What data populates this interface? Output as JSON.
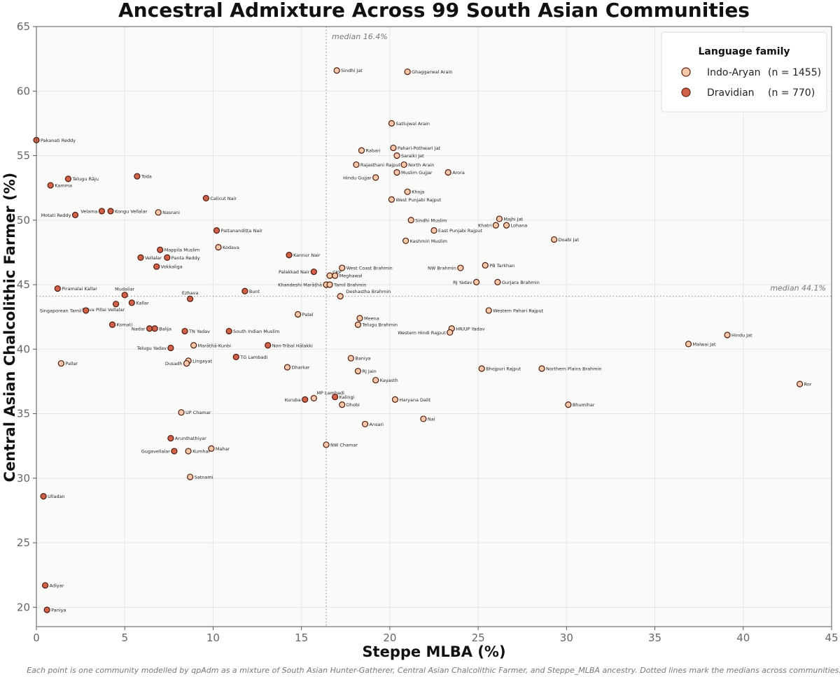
{
  "chart_data": {
    "type": "scatter",
    "title": "Ancestral Admixture Across 99 South Asian Communities",
    "xlabel": "Steppe MLBA  (%)",
    "ylabel": "Central Asian Chalcolithic Farmer  (%)",
    "xlim": [
      0,
      45
    ],
    "ylim": [
      18.5,
      65
    ],
    "xticks": [
      0,
      5,
      10,
      15,
      20,
      25,
      30,
      35,
      40,
      45
    ],
    "yticks": [
      20,
      25,
      30,
      35,
      40,
      45,
      50,
      55,
      60,
      65
    ],
    "grid": true,
    "medians": {
      "x": 16.4,
      "x_label": "median  16.4%",
      "y": 44.1,
      "y_label": "median  44.1%"
    },
    "caption": "Each point is one community modelled by qpAdm as a mixture of South Asian Hunter-Gatherer, Central Asian Chalcolithic Farmer, and Steppe_MLBA ancestry.  Dotted lines mark the medians across communities.",
    "legend": {
      "title": "Language family",
      "position": "top-right",
      "entries": [
        {
          "label": "Indo-Aryan",
          "count": "(n = 1455)",
          "color": "#f9c8a8"
        },
        {
          "label": "Dravidian",
          "count": "(n = 770)",
          "color": "#d2614a"
        }
      ]
    },
    "series": [
      {
        "name": "Indo-Aryan",
        "color": "#f9c8a8",
        "points": [
          {
            "label": "Sindhi Jat",
            "x": 17.0,
            "y": 61.6
          },
          {
            "label": "Ghaggarwal Arain",
            "x": 21.0,
            "y": 61.5
          },
          {
            "label": "Satlujwal Arain",
            "x": 20.1,
            "y": 57.5
          },
          {
            "label": "Pahari-Pothwari Jat",
            "x": 20.2,
            "y": 55.6
          },
          {
            "label": "Rabari",
            "x": 18.4,
            "y": 55.4
          },
          {
            "label": "Saraiki Jat",
            "x": 20.4,
            "y": 55.0
          },
          {
            "label": "Rajasthani Rajput",
            "x": 18.1,
            "y": 54.3
          },
          {
            "label": "North Arain",
            "x": 20.8,
            "y": 54.3
          },
          {
            "label": "Muslim Gujjar",
            "x": 20.4,
            "y": 53.7
          },
          {
            "label": "Arora",
            "x": 23.3,
            "y": 53.7
          },
          {
            "label": "Hindu Gujjar",
            "x": 19.2,
            "y": 53.3,
            "anchor": "left"
          },
          {
            "label": "Khoja",
            "x": 21.0,
            "y": 52.2
          },
          {
            "label": "West Punjabi Rajput",
            "x": 20.1,
            "y": 51.6
          },
          {
            "label": "Sindhi Muslim",
            "x": 21.2,
            "y": 50.0
          },
          {
            "label": "Majhi Jat",
            "x": 26.2,
            "y": 50.1
          },
          {
            "label": "Khatri",
            "x": 26.0,
            "y": 49.6,
            "anchor": "left"
          },
          {
            "label": "Lohana",
            "x": 26.6,
            "y": 49.6
          },
          {
            "label": "East Punjabi Rajput",
            "x": 22.5,
            "y": 49.2
          },
          {
            "label": "Doabi Jat",
            "x": 29.3,
            "y": 48.5
          },
          {
            "label": "Kashmiri Muslim",
            "x": 20.9,
            "y": 48.4
          },
          {
            "label": "PB Tarkhan",
            "x": 25.4,
            "y": 46.5
          },
          {
            "label": "NW Brahmin",
            "x": 24.0,
            "y": 46.3,
            "anchor": "left"
          },
          {
            "label": "West Coast Brahmin",
            "x": 17.3,
            "y": 46.3
          },
          {
            "label": "CKP",
            "x": 16.6,
            "y": 45.7,
            "dx": -2,
            "dy": -5
          },
          {
            "label": "Meghawal",
            "x": 16.9,
            "y": 45.7
          },
          {
            "label": "RJ Yadav",
            "x": 24.9,
            "y": 45.2,
            "anchor": "left"
          },
          {
            "label": "Gurjara Brahmin",
            "x": 26.1,
            "y": 45.2
          },
          {
            "label": "Khandeshi Marāṭhā",
            "x": 16.4,
            "y": 45.0,
            "anchor": "left"
          },
          {
            "label": "Tamil Brahmin",
            "x": 16.6,
            "y": 45.0
          },
          {
            "label": "Deshastha Brahmin",
            "x": 17.2,
            "y": 44.1,
            "dx": 2,
            "dy": -7
          },
          {
            "label": "Western Pahari Rajput",
            "x": 25.6,
            "y": 43.0
          },
          {
            "label": "Patel",
            "x": 14.8,
            "y": 42.7
          },
          {
            "label": "Meena",
            "x": 18.3,
            "y": 42.4
          },
          {
            "label": "Telugu Brahmin",
            "x": 18.2,
            "y": 41.9
          },
          {
            "label": "HR/UP Yadav",
            "x": 23.5,
            "y": 41.6
          },
          {
            "label": "Western Hindi Rajput",
            "x": 23.4,
            "y": 41.3,
            "anchor": "left"
          },
          {
            "label": "Hindu Jat",
            "x": 39.1,
            "y": 41.1
          },
          {
            "label": "Malwai Jat",
            "x": 36.9,
            "y": 40.4
          },
          {
            "label": "Marāṭhā-Kunbi",
            "x": 8.9,
            "y": 40.3
          },
          {
            "label": "Baniya",
            "x": 17.8,
            "y": 39.3
          },
          {
            "label": "Lingayat",
            "x": 8.6,
            "y": 39.1
          },
          {
            "label": "Dusadh",
            "x": 8.5,
            "y": 38.9,
            "anchor": "left"
          },
          {
            "label": "Dharkar",
            "x": 14.2,
            "y": 38.6
          },
          {
            "label": "Bhojpuri Rajput",
            "x": 25.2,
            "y": 38.5
          },
          {
            "label": "Northern Plains Brahmin",
            "x": 28.6,
            "y": 38.5
          },
          {
            "label": "RJ Jain",
            "x": 18.2,
            "y": 38.3
          },
          {
            "label": "Pallar",
            "x": 1.4,
            "y": 38.9
          },
          {
            "label": "Kayasth",
            "x": 19.2,
            "y": 37.6
          },
          {
            "label": "Ror",
            "x": 43.2,
            "y": 37.3
          },
          {
            "label": "MP Lambadi",
            "x": 15.7,
            "y": 36.2,
            "dx": -2,
            "dy": -8
          },
          {
            "label": "Haryana Dalit",
            "x": 20.3,
            "y": 36.1
          },
          {
            "label": "Dhobi",
            "x": 17.3,
            "y": 35.7
          },
          {
            "label": "Bhumihar",
            "x": 30.1,
            "y": 35.7
          },
          {
            "label": "UP Chamar",
            "x": 8.2,
            "y": 35.1
          },
          {
            "label": "Nai",
            "x": 21.9,
            "y": 34.6
          },
          {
            "label": "Ansari",
            "x": 18.6,
            "y": 34.2
          },
          {
            "label": "NW Chamar",
            "x": 16.4,
            "y": 32.6
          },
          {
            "label": "Mahar",
            "x": 9.9,
            "y": 32.3
          },
          {
            "label": "Kumhar",
            "x": 8.6,
            "y": 32.1
          },
          {
            "label": "Satnami",
            "x": 8.7,
            "y": 30.1
          },
          {
            "label": "Nasrani",
            "x": 6.9,
            "y": 50.6
          },
          {
            "label": "Kodava",
            "x": 10.3,
            "y": 47.9
          }
        ]
      },
      {
        "name": "Dravidian",
        "color": "#d2614a",
        "points": [
          {
            "label": "Pakanati Reddy",
            "x": 0.0,
            "y": 56.2
          },
          {
            "label": "Toda",
            "x": 5.7,
            "y": 53.4
          },
          {
            "label": "Telugu Rāju",
            "x": 1.8,
            "y": 53.2
          },
          {
            "label": "Kamma",
            "x": 0.8,
            "y": 52.7
          },
          {
            "label": "Calicut Nair",
            "x": 9.6,
            "y": 51.7
          },
          {
            "label": "Velama",
            "x": 3.7,
            "y": 50.7,
            "anchor": "left"
          },
          {
            "label": "Kongu Vellalar",
            "x": 4.2,
            "y": 50.7
          },
          {
            "label": "Motati Reddy",
            "x": 2.2,
            "y": 50.4,
            "anchor": "left"
          },
          {
            "label": "Pattanandiṭṭa Nair",
            "x": 10.2,
            "y": 49.2
          },
          {
            "label": "Mappila Muslim",
            "x": 7.0,
            "y": 47.7
          },
          {
            "label": "Kannur Nair",
            "x": 14.3,
            "y": 47.3
          },
          {
            "label": "Vellalar",
            "x": 5.9,
            "y": 47.1
          },
          {
            "label": "Panta Reddy",
            "x": 7.4,
            "y": 47.1
          },
          {
            "label": "Vokkaliga",
            "x": 6.8,
            "y": 46.4
          },
          {
            "label": "Palakkad Nair",
            "x": 15.7,
            "y": 46.0,
            "anchor": "left"
          },
          {
            "label": "Piramalai Kallar",
            "x": 1.2,
            "y": 44.7
          },
          {
            "label": "Bunt",
            "x": 11.8,
            "y": 44.5
          },
          {
            "label": "Mudaliar",
            "x": 5.0,
            "y": 44.2,
            "dx": 0,
            "dy": -9,
            "anchor": "middle"
          },
          {
            "label": "Ezhava",
            "x": 8.7,
            "y": 43.9,
            "dx": 0,
            "dy": -9,
            "anchor": "middle"
          },
          {
            "label": "Kallar",
            "x": 5.4,
            "y": 43.6
          },
          {
            "label": "Saiva Pillai Vellalar",
            "x": 4.5,
            "y": 43.5,
            "dx": -18,
            "dy": 8,
            "anchor": "middle"
          },
          {
            "label": "Singaporean Tamil",
            "x": 2.8,
            "y": 43.0,
            "anchor": "left"
          },
          {
            "label": "Komati",
            "x": 4.3,
            "y": 41.9
          },
          {
            "label": "Nadar",
            "x": 6.4,
            "y": 41.6,
            "anchor": "left"
          },
          {
            "label": "Balija",
            "x": 6.7,
            "y": 41.6
          },
          {
            "label": "TN Yadav",
            "x": 8.4,
            "y": 41.4
          },
          {
            "label": "South Indian Muslim",
            "x": 10.9,
            "y": 41.4
          },
          {
            "label": "Non-Tribal Hālakki",
            "x": 13.1,
            "y": 40.3
          },
          {
            "label": "Telugu Yadav",
            "x": 7.6,
            "y": 40.1,
            "anchor": "left"
          },
          {
            "label": "TG Lambadi",
            "x": 11.3,
            "y": 39.4
          },
          {
            "label": "Kuruba",
            "x": 15.2,
            "y": 36.1,
            "anchor": "left"
          },
          {
            "label": "Kalingi",
            "x": 16.9,
            "y": 36.3
          },
          {
            "label": "Arunthathiyar",
            "x": 7.6,
            "y": 33.1
          },
          {
            "label": "Gugavellalar",
            "x": 7.8,
            "y": 32.1,
            "anchor": "left"
          },
          {
            "label": "Ulladan",
            "x": 0.4,
            "y": 28.6
          },
          {
            "label": "Adiyar",
            "x": 0.5,
            "y": 21.7
          },
          {
            "label": "Paniya",
            "x": 0.6,
            "y": 19.8
          }
        ]
      }
    ]
  }
}
